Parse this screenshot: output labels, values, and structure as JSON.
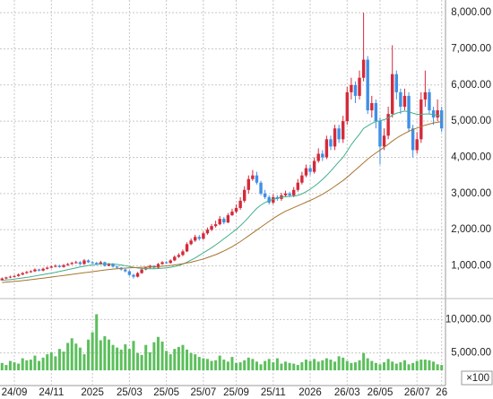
{
  "chart_data": {
    "type": "candlestick",
    "categories": [
      null,
      null,
      null,
      "24/09",
      null,
      null,
      null,
      null,
      null,
      null,
      null,
      null,
      "24/11",
      null,
      null,
      null,
      null,
      null,
      null,
      null,
      null,
      null,
      "2025",
      null,
      null,
      null,
      null,
      null,
      null,
      null,
      null,
      "25/03",
      null,
      null,
      null,
      null,
      null,
      null,
      null,
      null,
      "25/05",
      null,
      null,
      null,
      null,
      null,
      null,
      null,
      null,
      "25/07",
      null,
      null,
      null,
      null,
      null,
      null,
      null,
      "25/09",
      null,
      null,
      null,
      null,
      null,
      null,
      null,
      null,
      "25/11",
      null,
      null,
      null,
      null,
      null,
      null,
      null,
      null,
      "2026",
      null,
      null,
      null,
      null,
      null,
      null,
      null,
      null,
      "26/03",
      null,
      null,
      null,
      null,
      null,
      null,
      null,
      "26/05",
      null,
      null,
      null,
      null,
      null,
      null,
      null,
      null,
      "26/07",
      null,
      null,
      null,
      null,
      null,
      "26"
    ],
    "open": [
      600,
      650,
      680,
      700,
      720,
      760,
      800,
      830,
      850,
      900,
      870,
      920,
      950,
      980,
      1000,
      970,
      1020,
      1050,
      1080,
      1100,
      1050,
      1150,
      1100,
      1080,
      1050,
      1100,
      1000,
      1050,
      980,
      950,
      900,
      850,
      750,
      700,
      800,
      900,
      950,
      1000,
      950,
      1050,
      1100,
      1080,
      1150,
      1250,
      1300,
      1400,
      1600,
      1700,
      1800,
      1750,
      1900,
      2000,
      2100,
      2150,
      2300,
      2200,
      2400,
      2500,
      2600,
      2800,
      3100,
      3400,
      3500,
      3300,
      3000,
      2900,
      2750,
      2900,
      2850,
      2950,
      3000,
      2950,
      3100,
      3300,
      3500,
      3700,
      3600,
      3900,
      4100,
      4000,
      4500,
      4300,
      4800,
      4500,
      5000,
      5800,
      6000,
      5700,
      6200,
      6700,
      5300,
      5500,
      5000,
      4300,
      4600,
      5200,
      6300,
      5800,
      5400,
      5700,
      4800,
      4200,
      4500,
      5600,
      5800,
      5300,
      5100,
      5300
    ],
    "high": [
      680,
      700,
      730,
      750,
      790,
      830,
      860,
      880,
      930,
      920,
      950,
      980,
      1010,
      1040,
      1030,
      1050,
      1080,
      1110,
      1140,
      1130,
      1190,
      1180,
      1130,
      1110,
      1140,
      1120,
      1080,
      1080,
      1000,
      970,
      920,
      880,
      780,
      830,
      930,
      980,
      1030,
      1020,
      1080,
      1130,
      1130,
      1180,
      1290,
      1350,
      1450,
      1650,
      1760,
      1860,
      1850,
      1950,
      2060,
      2160,
      2250,
      2380,
      2350,
      2460,
      2580,
      2700,
      2900,
      3200,
      3500,
      3650,
      3600,
      3350,
      3100,
      2950,
      2980,
      2950,
      3020,
      3080,
      3050,
      3180,
      3400,
      3600,
      3800,
      3800,
      4000,
      4250,
      4200,
      4600,
      4600,
      4900,
      4900,
      5150,
      5950,
      6200,
      6100,
      6400,
      8000,
      6800,
      5700,
      5600,
      5100,
      4800,
      5400,
      7100,
      6400,
      5900,
      5900,
      5800,
      4900,
      4700,
      5800,
      6400,
      5900,
      5400,
      5600,
      5400
    ],
    "low": [
      590,
      630,
      660,
      680,
      700,
      740,
      780,
      810,
      830,
      850,
      850,
      900,
      930,
      960,
      950,
      950,
      1000,
      1030,
      1060,
      1020,
      1030,
      1080,
      1050,
      1020,
      1030,
      980,
      990,
      950,
      920,
      870,
      820,
      720,
      650,
      680,
      780,
      880,
      930,
      920,
      930,
      1030,
      1050,
      1060,
      1130,
      1220,
      1270,
      1380,
      1570,
      1660,
      1700,
      1720,
      1860,
      1960,
      2060,
      2120,
      2150,
      2180,
      2380,
      2450,
      2550,
      2750,
      3000,
      3350,
      3250,
      2950,
      2850,
      2700,
      2700,
      2800,
      2800,
      2900,
      2900,
      2900,
      3050,
      3250,
      3450,
      3500,
      3550,
      3850,
      3900,
      3950,
      4200,
      4200,
      4400,
      4400,
      4900,
      5600,
      5500,
      5600,
      6100,
      5200,
      5100,
      4800,
      3800,
      4200,
      4500,
      5100,
      5600,
      5200,
      5300,
      4700,
      4000,
      4100,
      4400,
      5400,
      5200,
      4900,
      5000,
      4700
    ],
    "close": [
      650,
      680,
      700,
      720,
      760,
      800,
      830,
      850,
      900,
      870,
      920,
      950,
      980,
      1000,
      970,
      1020,
      1050,
      1080,
      1100,
      1050,
      1150,
      1100,
      1080,
      1050,
      1100,
      1000,
      1050,
      980,
      950,
      900,
      850,
      750,
      700,
      800,
      900,
      950,
      1000,
      950,
      1050,
      1100,
      1080,
      1150,
      1250,
      1300,
      1400,
      1600,
      1700,
      1800,
      1750,
      1900,
      2000,
      2100,
      2150,
      2300,
      2200,
      2400,
      2500,
      2600,
      2800,
      3100,
      3400,
      3500,
      3300,
      3000,
      2900,
      2750,
      2900,
      2850,
      2950,
      3000,
      2950,
      3100,
      3300,
      3500,
      3700,
      3600,
      3900,
      4100,
      4000,
      4500,
      4300,
      4800,
      4500,
      5000,
      5800,
      6000,
      5700,
      6200,
      6700,
      5300,
      5500,
      5000,
      4300,
      4600,
      5200,
      6300,
      5800,
      5400,
      5700,
      4800,
      4200,
      4500,
      5600,
      5800,
      5300,
      5100,
      5300,
      4800
    ],
    "up_color": "#d42a3a",
    "down_color": "#3f8fe6",
    "lines": [
      {
        "color": "#3fae8c",
        "values": [
          600,
          610,
          620,
          635,
          650,
          665,
          680,
          700,
          720,
          740,
          760,
          780,
          800,
          820,
          845,
          870,
          895,
          920,
          945,
          970,
          990,
          1010,
          1030,
          1040,
          1050,
          1055,
          1055,
          1050,
          1040,
          1025,
          1005,
          985,
          960,
          940,
          930,
          925,
          920,
          920,
          925,
          935,
          945,
          960,
          980,
          1010,
          1050,
          1100,
          1160,
          1220,
          1290,
          1360,
          1430,
          1500,
          1580,
          1660,
          1750,
          1830,
          1920,
          2010,
          2110,
          2220,
          2340,
          2470,
          2590,
          2680,
          2750,
          2800,
          2840,
          2870,
          2900,
          2910,
          2920,
          2930,
          2950,
          2990,
          3050,
          3120,
          3200,
          3290,
          3390,
          3500,
          3620,
          3750,
          3880,
          4000,
          4170,
          4350,
          4500,
          4640,
          4800,
          4870,
          4940,
          4990,
          5010,
          5040,
          5090,
          5170,
          5220,
          5250,
          5280,
          5260,
          5220,
          5190,
          5190,
          5200,
          5200,
          5180,
          5160,
          5140
        ]
      },
      {
        "color": "#a8742e",
        "values": [
          540,
          550,
          560,
          570,
          580,
          592,
          605,
          618,
          632,
          646,
          660,
          675,
          690,
          705,
          720,
          735,
          750,
          765,
          780,
          795,
          810,
          825,
          840,
          855,
          870,
          885,
          898,
          910,
          920,
          930,
          938,
          945,
          950,
          955,
          960,
          965,
          970,
          975,
          980,
          990,
          1000,
          1010,
          1025,
          1040,
          1060,
          1080,
          1100,
          1130,
          1160,
          1190,
          1230,
          1270,
          1310,
          1360,
          1410,
          1470,
          1530,
          1600,
          1670,
          1750,
          1830,
          1910,
          1990,
          2070,
          2150,
          2230,
          2310,
          2380,
          2450,
          2510,
          2560,
          2610,
          2660,
          2710,
          2760,
          2810,
          2860,
          2920,
          2980,
          3050,
          3120,
          3200,
          3280,
          3360,
          3450,
          3550,
          3650,
          3750,
          3850,
          3950,
          4040,
          4120,
          4200,
          4280,
          4360,
          4450,
          4530,
          4600,
          4660,
          4720,
          4770,
          4810,
          4850,
          4890,
          4920,
          4950,
          4970,
          4990
        ]
      }
    ],
    "ylim": [
      170,
      8350
    ],
    "yticks": [
      {
        "value": 1000,
        "label": "1,000.00"
      },
      {
        "value": 2000,
        "label": "2,000.00"
      },
      {
        "value": 3000,
        "label": "3,000.00"
      },
      {
        "value": 4000,
        "label": "4,000.00"
      },
      {
        "value": 5000,
        "label": "5,000.00"
      },
      {
        "value": 6000,
        "label": "6,000.00"
      },
      {
        "value": 7000,
        "label": "7,000.00"
      },
      {
        "value": 8000,
        "label": "8,000.00"
      }
    ],
    "grid": true,
    "volume": {
      "color": "#5cbf5c",
      "unit_label": "×100",
      "ylim": [
        2400,
        12200
      ],
      "yticks": [
        {
          "value": 5000,
          "label": "5,000.00"
        },
        {
          "value": 10000,
          "label": "10,000.00"
        }
      ],
      "values": [
        3500,
        3200,
        3800,
        3600,
        3400,
        4200,
        3900,
        4000,
        4600,
        3800,
        4300,
        4800,
        5100,
        4500,
        5600,
        5200,
        6500,
        7200,
        6400,
        5800,
        4800,
        7000,
        8100,
        10800,
        6900,
        7500,
        7000,
        6200,
        5800,
        5500,
        6300,
        5600,
        6800,
        5000,
        4700,
        6200,
        5100,
        6600,
        7400,
        6700,
        5300,
        4800,
        5600,
        5900,
        6200,
        5500,
        5000,
        4800,
        4400,
        4200,
        4100,
        3800,
        3900,
        4600,
        4000,
        3700,
        4400,
        3500,
        3600,
        3900,
        4300,
        4100,
        3700,
        3300,
        3800,
        4100,
        3600,
        4200,
        3400,
        3700,
        3500,
        3400,
        3200,
        3600,
        4000,
        3800,
        4100,
        3700,
        3900,
        4200,
        4000,
        3700,
        4500,
        4300,
        3800,
        3500,
        3600,
        3900,
        5000,
        4200,
        3800,
        3500,
        3300,
        3600,
        4100,
        3700,
        3400,
        3600,
        3900,
        3300,
        3500,
        3800,
        4000,
        4000,
        3900,
        3700,
        3300,
        3200
      ]
    }
  }
}
